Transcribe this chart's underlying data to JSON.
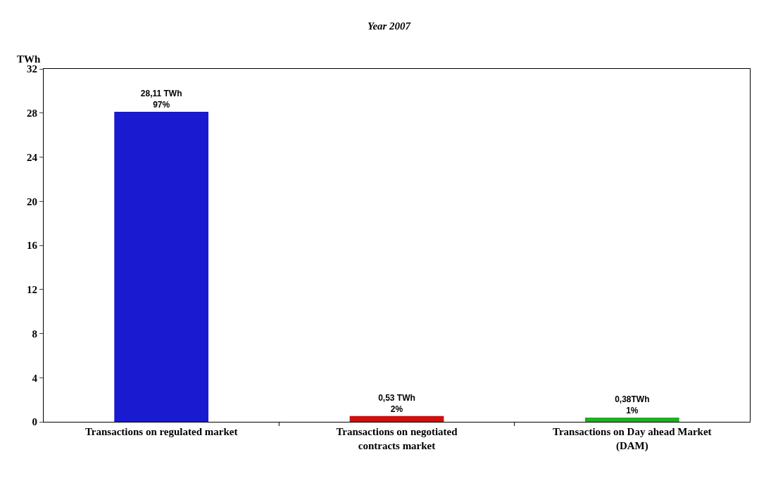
{
  "chart_data": {
    "type": "bar",
    "title": "Year 2007",
    "ylabel": "TWh",
    "categories": [
      "Transactions on regulated market",
      "Transactions on negotiated contracts market",
      "Transactions on Day ahead Market (DAM)"
    ],
    "values": [
      28.11,
      0.53,
      0.38
    ],
    "colors": [
      "#1a1ad0",
      "#d01010",
      "#20b020"
    ],
    "value_labels": [
      "28,11 TWh\n97%",
      "0,53 TWh\n2%",
      "0,38TWh\n1%"
    ],
    "ylim": [
      0,
      32
    ],
    "yticks": [
      0,
      4,
      8,
      12,
      16,
      20,
      24,
      28,
      32
    ],
    "grid": false
  }
}
